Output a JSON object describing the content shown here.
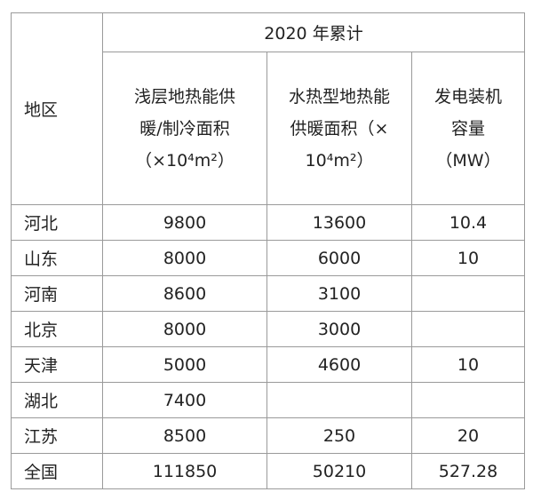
{
  "table": {
    "corner": "地区",
    "group": "2020 年累计",
    "columns": [
      [
        "浅层地热能供",
        "暖/制冷面积",
        "（×10⁴m²）"
      ],
      [
        "水热型地热能",
        "供暖面积（×",
        "10⁴m²）"
      ],
      [
        "发电装机",
        "容量",
        "（MW）"
      ]
    ],
    "rows": [
      [
        "河北",
        9800,
        13600,
        10.4
      ],
      [
        "山东",
        8000,
        6000,
        10
      ],
      [
        "河南",
        8600,
        3100,
        null
      ],
      [
        "北京",
        8000,
        3000,
        null
      ],
      [
        "天津",
        5000,
        4600,
        10
      ],
      [
        "湖北",
        7400,
        null,
        null
      ],
      [
        "江苏",
        8500,
        250,
        20
      ],
      [
        "全国",
        111850,
        50210,
        527.28
      ]
    ]
  }
}
